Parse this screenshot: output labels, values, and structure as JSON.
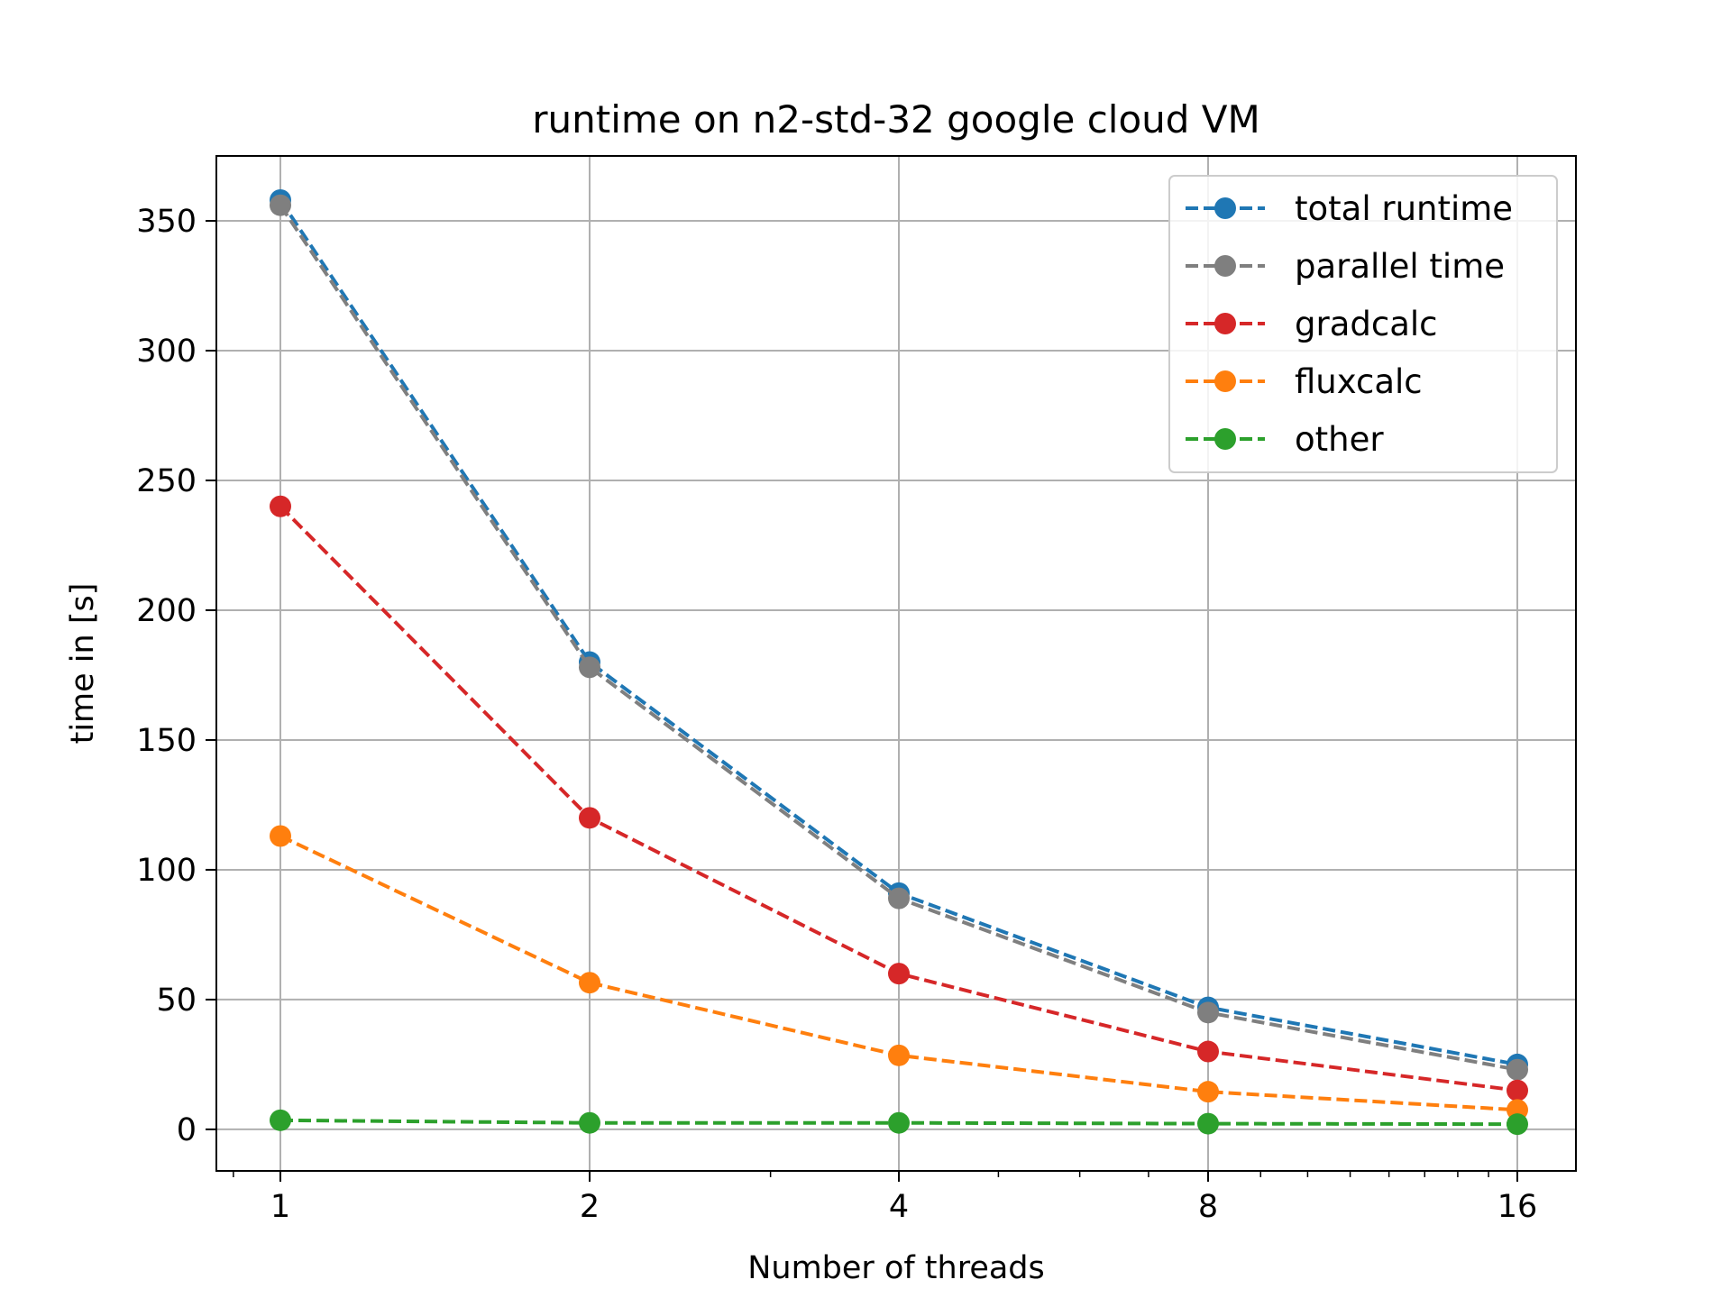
{
  "chart_data": {
    "type": "line",
    "title": "runtime on n2-std-32 google cloud VM",
    "xlabel": "Number of threads",
    "ylabel": "time in [s]",
    "xscale": "log2",
    "x": [
      1,
      2,
      4,
      8,
      16
    ],
    "xticks": [
      "1",
      "2",
      "4",
      "8",
      "16"
    ],
    "yticks": [
      "0",
      "50",
      "100",
      "150",
      "200",
      "250",
      "300",
      "350"
    ],
    "ylim": [
      -16,
      375
    ],
    "grid": true,
    "legend_position": "top-right",
    "line_style": "dashed",
    "marker": "circle",
    "series": [
      {
        "name": "total runtime",
        "color": "#1f77b4",
        "values": [
          358,
          180,
          91,
          47,
          25
        ]
      },
      {
        "name": "parallel time",
        "color": "#7f7f7f",
        "values": [
          356,
          178,
          89,
          45,
          23
        ]
      },
      {
        "name": "gradcalc",
        "color": "#d62728",
        "values": [
          240,
          120,
          60,
          30,
          15
        ]
      },
      {
        "name": "fluxcalc",
        "color": "#ff7f0e",
        "values": [
          113,
          56.5,
          28.5,
          14.5,
          7.5
        ]
      },
      {
        "name": "other",
        "color": "#2ca02c",
        "values": [
          3.5,
          2.5,
          2.5,
          2.2,
          2.0
        ]
      }
    ]
  }
}
